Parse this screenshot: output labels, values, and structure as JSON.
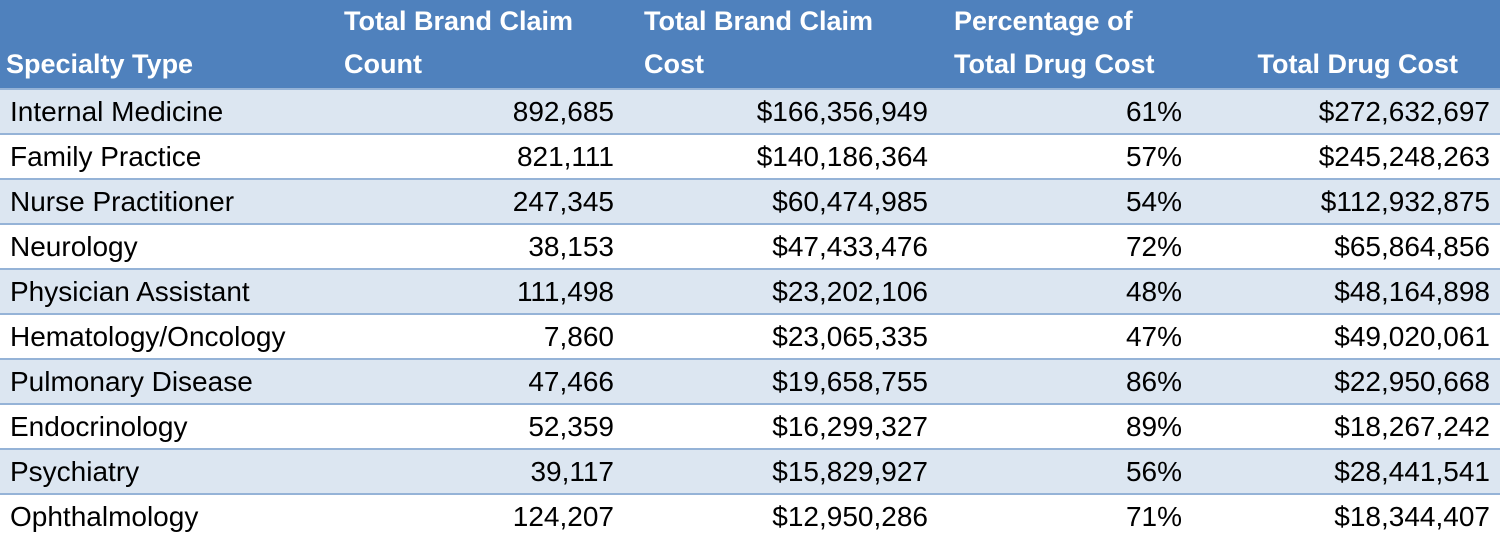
{
  "table": {
    "headers": [
      "Specialty Type",
      "Total Brand Claim Count",
      "Total Brand Claim Cost",
      "Percentage of Total Drug Cost",
      "Total Drug Cost"
    ],
    "rows": [
      [
        "Internal Medicine",
        "892,685",
        "$166,356,949",
        "61%",
        "$272,632,697"
      ],
      [
        "Family Practice",
        "821,111",
        "$140,186,364",
        "57%",
        "$245,248,263"
      ],
      [
        "Nurse Practitioner",
        "247,345",
        "$60,474,985",
        "54%",
        "$112,932,875"
      ],
      [
        "Neurology",
        "38,153",
        "$47,433,476",
        "72%",
        "$65,864,856"
      ],
      [
        "Physician Assistant",
        "111,498",
        "$23,202,106",
        "48%",
        "$48,164,898"
      ],
      [
        "Hematology/Oncology",
        "7,860",
        "$23,065,335",
        "47%",
        "$49,020,061"
      ],
      [
        "Pulmonary Disease",
        "47,466",
        "$19,658,755",
        "86%",
        "$22,950,668"
      ],
      [
        "Endocrinology",
        "52,359",
        "$16,299,327",
        "89%",
        "$18,267,242"
      ],
      [
        "Psychiatry",
        "39,117",
        "$15,829,927",
        "56%",
        "$28,441,541"
      ],
      [
        "Ophthalmology",
        "124,207",
        "$12,950,286",
        "71%",
        "$18,344,407"
      ]
    ]
  },
  "colors": {
    "header_bg": "#4f81bd",
    "band_row_bg": "#dce6f1",
    "row_border": "#95b3d7"
  }
}
